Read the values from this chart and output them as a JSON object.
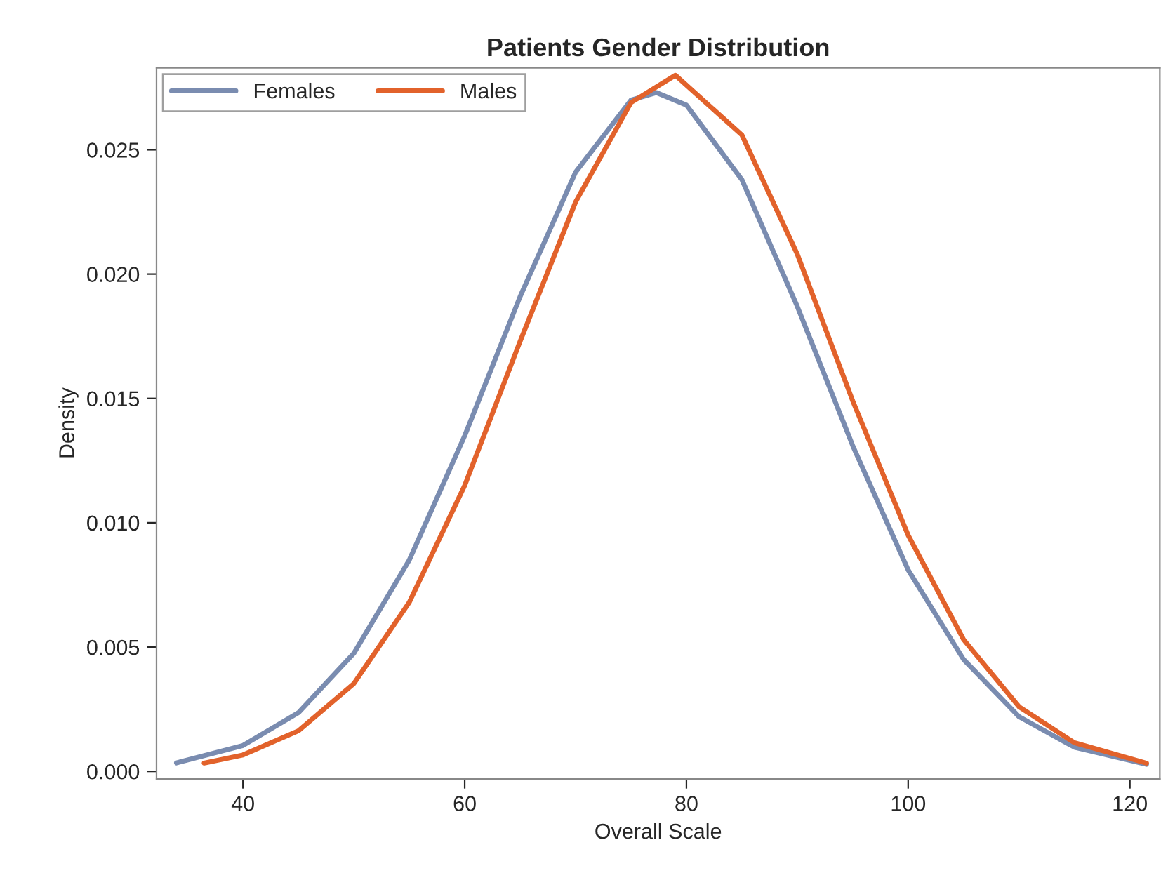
{
  "chart_data": {
    "type": "line",
    "title": "Patients Gender Distribution",
    "xlabel": "Overall Scale",
    "ylabel": "Density",
    "xlim": [
      32.2,
      122.7
    ],
    "xticks": [
      40,
      60,
      80,
      100,
      120
    ],
    "ylim": [
      -0.0003,
      0.0283
    ],
    "yticks": [
      {
        "value": 0,
        "label": "0.000"
      },
      {
        "value": 0.005,
        "label": "0.005"
      },
      {
        "value": 0.01,
        "label": "0.010"
      },
      {
        "value": 0.015,
        "label": "0.015"
      },
      {
        "value": 0.02,
        "label": "0.020"
      },
      {
        "value": 0.025,
        "label": "0.025"
      }
    ],
    "grid": false,
    "legend": "top left",
    "marker": "none",
    "line_style": "solid",
    "series": [
      {
        "name": "Females",
        "color": "#7a8cb0",
        "x": [
          34,
          40,
          45,
          50,
          55,
          60,
          65,
          70,
          75,
          77.3,
          80,
          85,
          90,
          95,
          100,
          105,
          110,
          115,
          121.5
        ],
        "values": [
          0.00034,
          0.00104,
          0.00236,
          0.00475,
          0.0085,
          0.0135,
          0.0191,
          0.0241,
          0.027,
          0.0273,
          0.0268,
          0.0238,
          0.0187,
          0.0131,
          0.0081,
          0.0045,
          0.0022,
          0.00097,
          0.00028
        ]
      },
      {
        "name": "Males",
        "color": "#e2622b",
        "x": [
          36.5,
          40,
          45,
          50,
          55,
          60,
          65,
          70,
          75,
          79,
          85,
          90,
          95,
          100,
          105,
          110,
          115,
          121.5
        ],
        "values": [
          0.00033,
          0.00066,
          0.00163,
          0.00353,
          0.0068,
          0.0115,
          0.0173,
          0.0229,
          0.0269,
          0.028,
          0.0256,
          0.0208,
          0.0149,
          0.0095,
          0.0053,
          0.0026,
          0.00115,
          0.00033
        ]
      }
    ]
  }
}
